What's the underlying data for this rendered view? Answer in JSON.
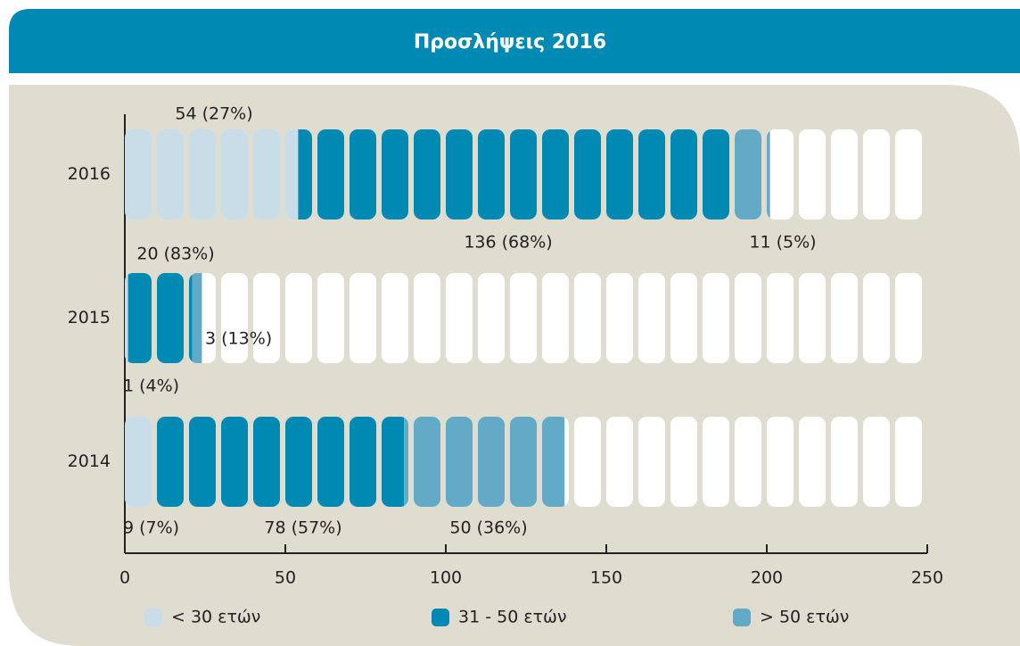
{
  "chart_data": {
    "type": "stacked-bar-horizontal",
    "title": "Προσλήψεις 2016",
    "categories": [
      "2016",
      "2015",
      "2014"
    ],
    "series": [
      {
        "name": "< 30 ετών",
        "color": "#c8dde8",
        "values": [
          54,
          1,
          9
        ],
        "value_labels": [
          "54 (27%)",
          "1 (4%)",
          "9 (7%)"
        ]
      },
      {
        "name": "31 - 50 ετών",
        "color": "#0089b3",
        "values": [
          136,
          20,
          78
        ],
        "value_labels": [
          "136 (68%)",
          "20 (83%)",
          "78 (57%)"
        ]
      },
      {
        "name": "> 50 ετών",
        "color": "#63aac6",
        "values": [
          11,
          3,
          50
        ],
        "value_labels": [
          "11 (5%)",
          "3 (13%)",
          "50 (36%)"
        ]
      }
    ],
    "xlim": [
      0,
      250
    ],
    "xticks": [
      0,
      50,
      100,
      150,
      200,
      250
    ]
  }
}
